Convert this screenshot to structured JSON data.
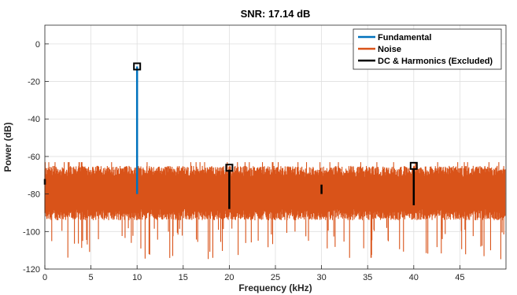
{
  "chart_data": {
    "type": "line",
    "title": "SNR:  17.14 dB",
    "xlabel": "Frequency (kHz)",
    "ylabel": "Power (dB)",
    "xlim": [
      0,
      50
    ],
    "ylim": [
      -120,
      10
    ],
    "xticks": [
      0,
      5,
      10,
      15,
      20,
      25,
      30,
      35,
      40,
      45
    ],
    "yticks": [
      0,
      -20,
      -40,
      -60,
      -80,
      -100,
      -120
    ],
    "grid": true,
    "legend_position": "top-right",
    "colors": {
      "fundamental": "#0072BD",
      "noise": "#D95319",
      "harmonics": "#000000"
    },
    "noise_floor": {
      "typical_min": -94,
      "typical_max": -65,
      "deepest": -115
    },
    "series": [
      {
        "name": "Fundamental",
        "color": "#0072BD",
        "x": [
          10,
          10
        ],
        "y": [
          -80,
          -12
        ]
      },
      {
        "name": "Noise",
        "color": "#D95319",
        "x": [
          0,
          49.9
        ],
        "y": [
          -80,
          -80
        ]
      },
      {
        "name": "DC & Harmonics (Excluded)",
        "color": "#000000",
        "segments": [
          {
            "x": 0,
            "y": [
              -75,
              -72
            ]
          },
          {
            "x": 20,
            "y": [
              -88,
              -67
            ]
          },
          {
            "x": 30,
            "y": [
              -80,
              -75
            ]
          },
          {
            "x": 40,
            "y": [
              -86,
              -67
            ]
          }
        ]
      }
    ],
    "markers": [
      {
        "x": 10,
        "y": -12
      },
      {
        "x": 20,
        "y": -66
      },
      {
        "x": 40,
        "y": -65
      }
    ]
  }
}
